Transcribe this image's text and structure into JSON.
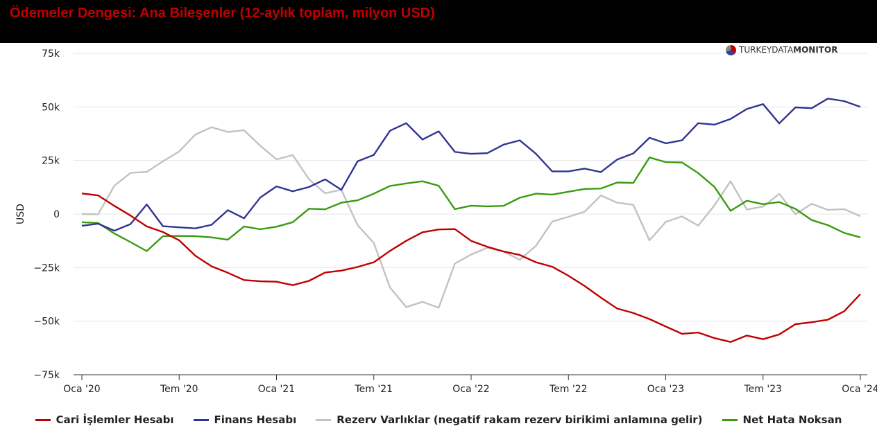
{
  "header": {
    "title": "Ödemeler Dengesi: Ana Bileşenler (12-aylık toplam, milyon USD)"
  },
  "logo": {
    "prefix": "TURKEYDATA",
    "suffix": "MONITOR"
  },
  "colors": {
    "cari": "#c00000",
    "finans": "#2f3592",
    "rezerv": "#c2c2c2",
    "nethata": "#3a9a12"
  },
  "chart_data": {
    "type": "line",
    "ylabel": "USD",
    "ylim": [
      -75000,
      75000
    ],
    "yticks": [
      75000,
      50000,
      25000,
      0,
      -25000,
      -50000,
      -75000
    ],
    "ytick_labels": [
      "75k",
      "50k",
      "25k",
      "0",
      "−25k",
      "−50k",
      "−75k"
    ],
    "x_tick_labels": [
      "Oca '20",
      "Tem '20",
      "Oca '21",
      "Tem '21",
      "Oca '22",
      "Tem '22",
      "Oca '23",
      "Tem '23",
      "Oca '24"
    ],
    "x_ticks_note": "every 6 months starting Oca '20",
    "grid": true,
    "legend_position": "bottom",
    "series": [
      {
        "name": "Cari İşlemler Hesabı",
        "color": "#c00000",
        "values": [
          9600,
          8700,
          3800,
          -700,
          -5800,
          -8400,
          -12300,
          -19500,
          -24400,
          -27400,
          -30800,
          -31400,
          -31600,
          -33200,
          -31200,
          -27300,
          -26400,
          -24700,
          -22500,
          -17200,
          -12500,
          -8500,
          -7200,
          -7000,
          -12500,
          -15300,
          -17500,
          -19100,
          -22500,
          -24600,
          -28800,
          -33600,
          -39000,
          -44100,
          -46200,
          -49000,
          -52500,
          -55900,
          -55300,
          -57900,
          -59700,
          -56700,
          -58400,
          -56200,
          -51400,
          -50500,
          -49300,
          -45400,
          -37400
        ]
      },
      {
        "name": "Finans Hesabı",
        "color": "#2f3592",
        "values": [
          -5500,
          -4500,
          -7800,
          -4700,
          4500,
          -5700,
          -6200,
          -6700,
          -5000,
          1800,
          -2000,
          7700,
          12900,
          10600,
          12600,
          16200,
          11300,
          24600,
          27600,
          38900,
          42400,
          34800,
          38600,
          29000,
          28100,
          28400,
          32400,
          34400,
          28100,
          19900,
          19900,
          21200,
          19600,
          25400,
          28300,
          35600,
          33000,
          34400,
          42400,
          41700,
          44400,
          49000,
          51300,
          42300,
          49800,
          49400,
          53900,
          52700,
          50000
        ]
      },
      {
        "name": "Rezerv Varlıklar (negatif rakam rezerv birikimi anlamına gelir)",
        "color": "#c2c2c2",
        "values": [
          0,
          -100,
          13200,
          19200,
          19700,
          24600,
          29200,
          37100,
          40500,
          38300,
          39100,
          31900,
          25500,
          27500,
          16300,
          9700,
          11300,
          -5200,
          -13500,
          -34300,
          -43400,
          -41000,
          -43700,
          -23100,
          -18900,
          -15700,
          -17500,
          -21400,
          -14800,
          -3500,
          -1300,
          1100,
          8700,
          5300,
          4300,
          -12300,
          -3700,
          -1100,
          -5400,
          4000,
          15300,
          2100,
          3500,
          9400,
          -100,
          4800,
          1900,
          2300,
          -1000
        ]
      },
      {
        "name": "Net Hata Noksan",
        "color": "#3a9a12",
        "values": [
          -3800,
          -4200,
          -9100,
          -13100,
          -17300,
          -10300,
          -10200,
          -10300,
          -10900,
          -12000,
          -5800,
          -7100,
          -5900,
          -3800,
          2500,
          2200,
          5300,
          6400,
          9500,
          13100,
          14300,
          15300,
          13200,
          2300,
          3900,
          3600,
          3800,
          7600,
          9500,
          9100,
          10400,
          11700,
          11900,
          14700,
          14500,
          26400,
          24200,
          24100,
          19100,
          12700,
          1500,
          6200,
          4600,
          5600,
          2400,
          -2800,
          -5200,
          -8800,
          -10900
        ]
      }
    ]
  }
}
